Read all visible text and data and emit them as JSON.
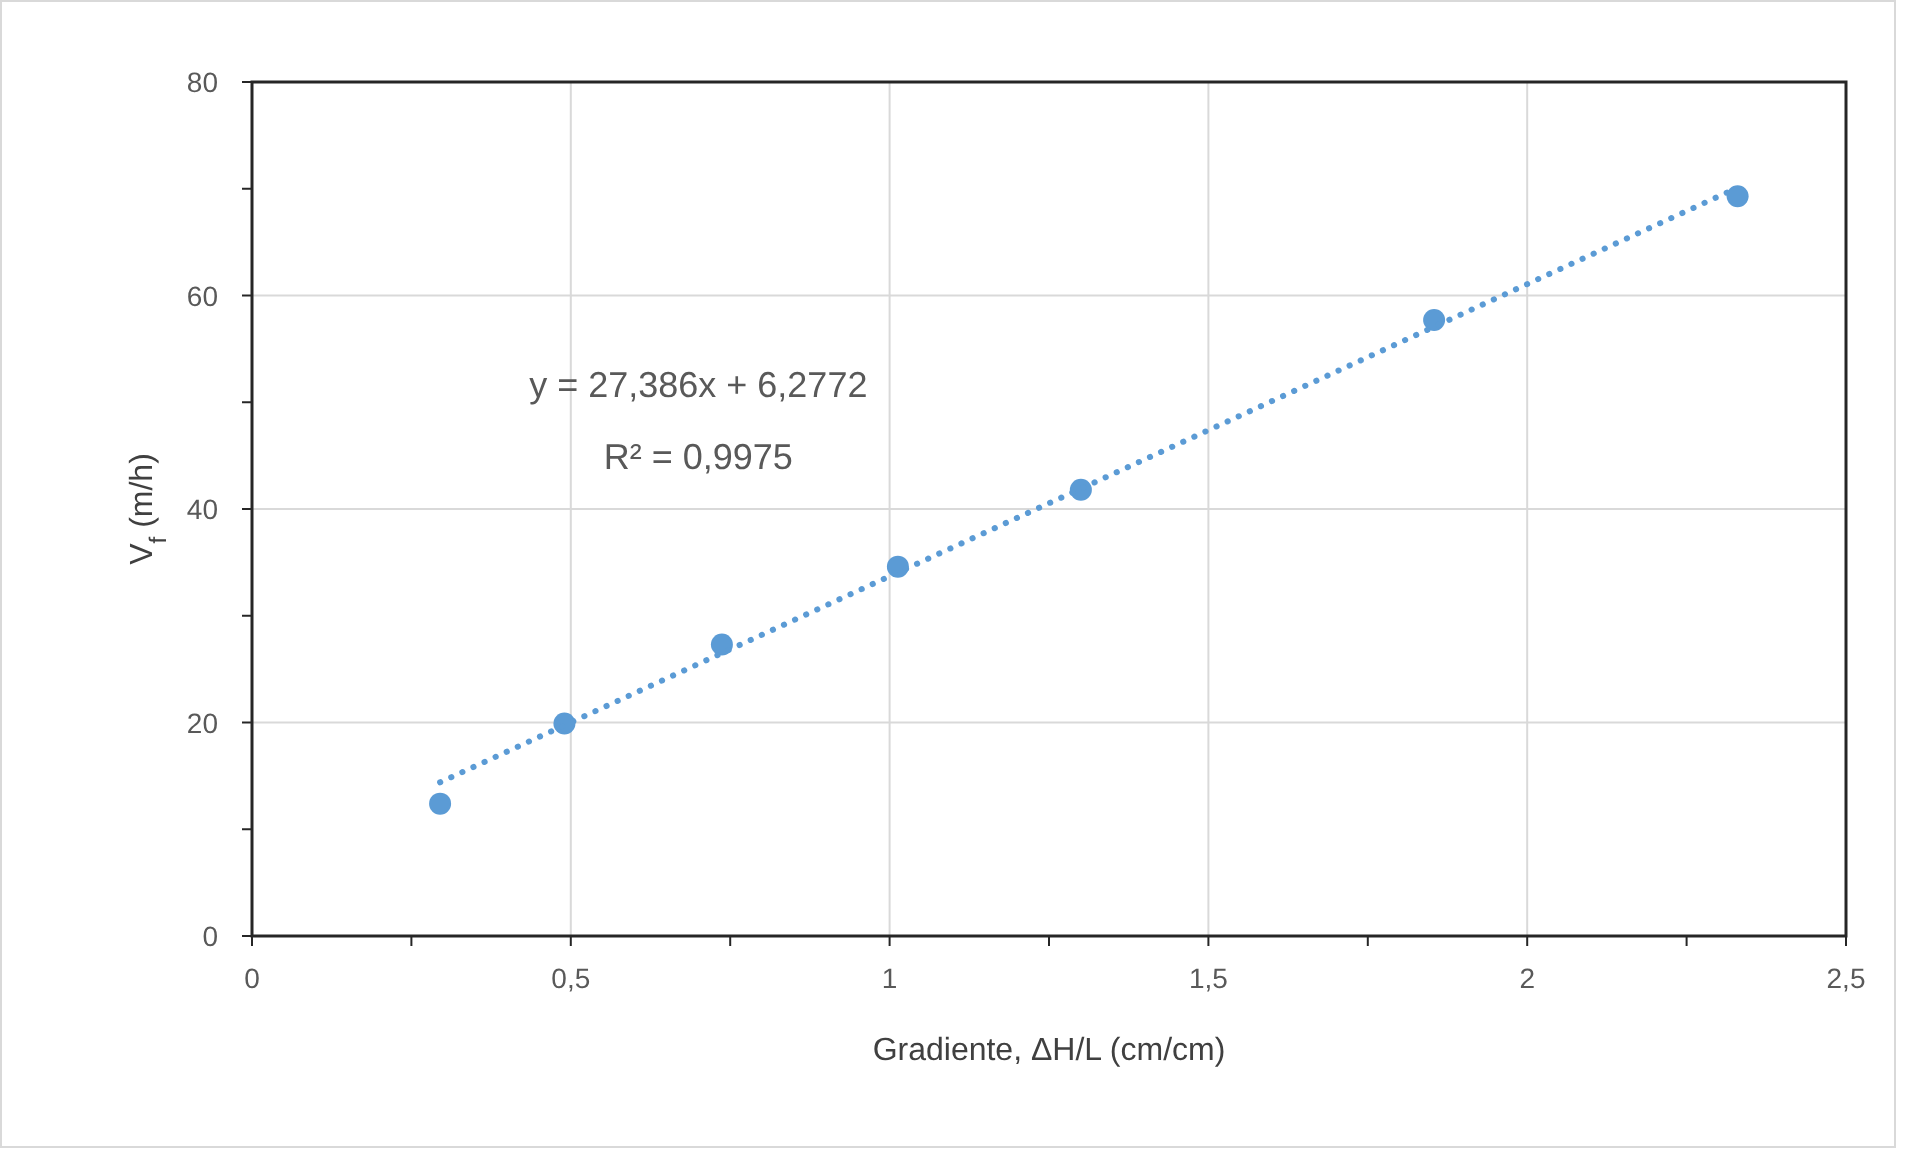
{
  "chart_data": {
    "type": "scatter",
    "xlabel": "Gradiente, ΔH/L (cm/cm)",
    "ylabel": "V$_{f}$ (m/h)",
    "annotations": [
      "y = 27,386x + 6,2772",
      "R² = 0,9975"
    ],
    "x": [
      0.295,
      0.49,
      0.737,
      1.013,
      1.3,
      1.854,
      2.33
    ],
    "series": [
      {
        "color": "#5b9bd5",
        "marker": "circle",
        "values": [
          12.4,
          19.9,
          27.3,
          34.6,
          41.8,
          57.7,
          69.3
        ]
      },
      {
        "type": "line",
        "color": "#5b9bd5",
        "marker": "none",
        "line_style": "dotted",
        "x": [
          0.295,
          2.33
        ],
        "values": [
          14.4,
          70.1
        ]
      }
    ],
    "xlim": [
      0,
      2.5
    ],
    "ylim": [
      0,
      80
    ],
    "xticks": [
      0,
      {
        "value": 0.25,
        "label": null
      },
      {
        "value": 0.5,
        "label": "0,5"
      },
      {
        "value": 0.75,
        "label": null
      },
      1,
      {
        "value": 1.25,
        "label": null
      },
      {
        "value": 1.5,
        "label": "1,5"
      },
      {
        "value": 1.75,
        "label": null
      },
      2,
      {
        "value": 2.25,
        "label": null
      },
      {
        "value": 2.5,
        "label": "2,5"
      }
    ],
    "yticks": [
      0,
      {
        "value": 10,
        "label": null
      },
      20,
      {
        "value": 30,
        "label": null
      },
      40,
      {
        "value": 50,
        "label": null
      },
      60,
      {
        "value": 70,
        "label": null
      },
      80
    ],
    "grid": true
  }
}
